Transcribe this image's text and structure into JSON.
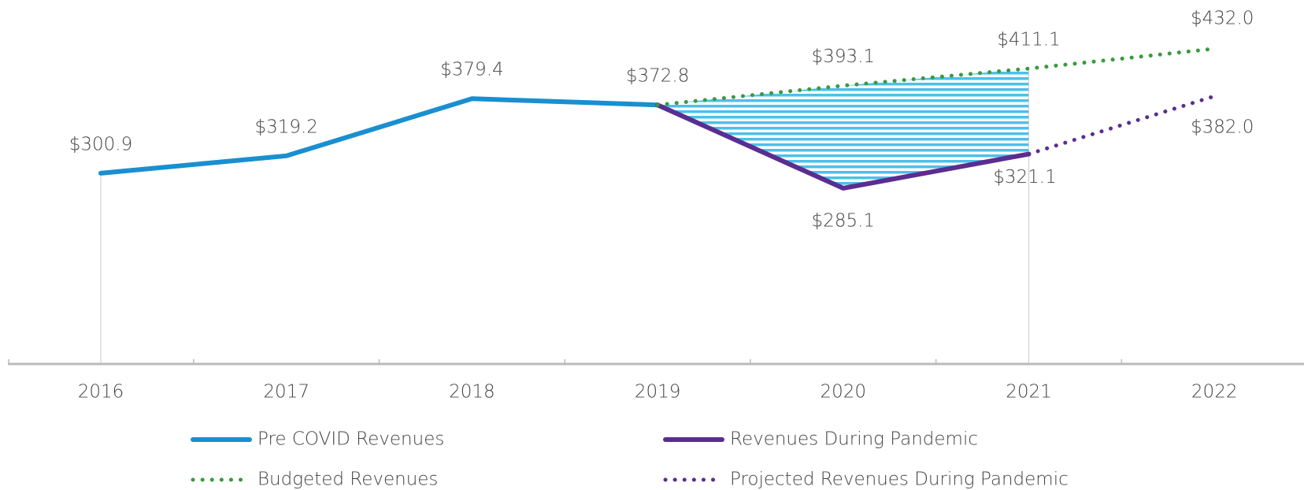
{
  "chart_data": {
    "type": "line",
    "categories": [
      "2016",
      "2017",
      "2018",
      "2019",
      "2020",
      "2021",
      "2022"
    ],
    "ylim": [
      100,
      480
    ],
    "series": [
      {
        "name": "Pre COVID Revenues",
        "color": "#1a8fd0",
        "style": "solid",
        "values": [
          300.9,
          319.2,
          379.4,
          372.8,
          null,
          null,
          null
        ],
        "value_labels": [
          "$300.9",
          "$319.2",
          "$379.4",
          "$372.8",
          null,
          null,
          null
        ]
      },
      {
        "name": "Revenues During Pandemic",
        "color": "#5b2d90",
        "style": "solid",
        "values": [
          null,
          null,
          null,
          372.8,
          285.1,
          321.1,
          null
        ],
        "value_labels": [
          null,
          null,
          null,
          null,
          "$285.1",
          "$321.1",
          null
        ]
      },
      {
        "name": "Budgeted Revenues",
        "color": "#3a9a3e",
        "style": "dotted",
        "values": [
          null,
          null,
          null,
          372.8,
          393.1,
          411.1,
          432.0
        ],
        "value_labels": [
          null,
          null,
          null,
          null,
          "$393.1",
          "$411.1",
          "$432.0"
        ]
      },
      {
        "name": "Projected Revenues During Pandemic",
        "color": "#5b2d90",
        "style": "dotted",
        "values": [
          null,
          null,
          null,
          null,
          null,
          321.1,
          382.0
        ],
        "value_labels": [
          null,
          null,
          null,
          null,
          null,
          null,
          "$382.0"
        ]
      }
    ]
  }
}
